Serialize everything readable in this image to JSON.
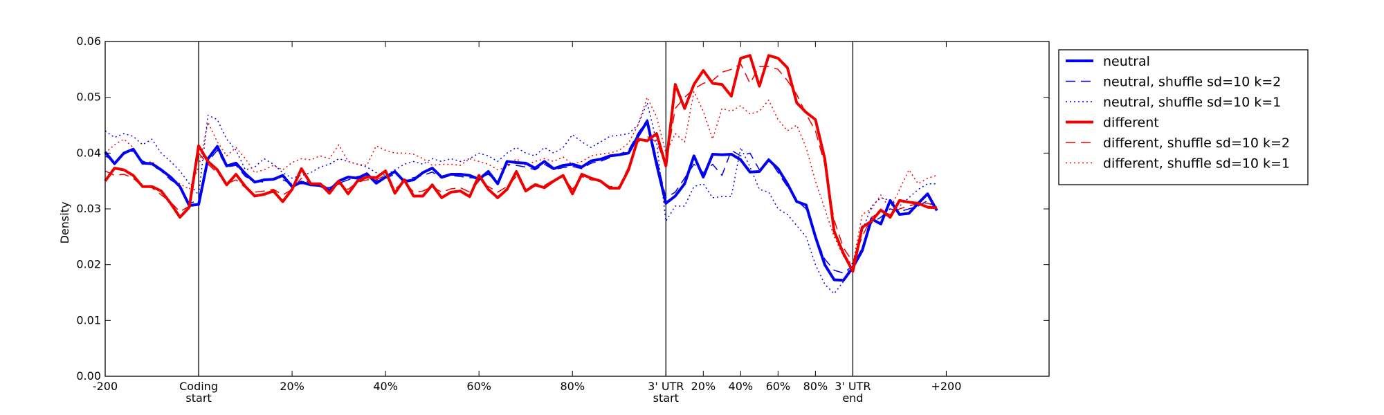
{
  "chart_data": {
    "type": "line",
    "title": "",
    "xlabel": "",
    "ylabel": "Density",
    "ylim": [
      0,
      0.06
    ],
    "yticks": [
      "0.00",
      "0.01",
      "0.02",
      "0.03",
      "0.04",
      "0.05",
      "0.06"
    ],
    "xlim": [
      0,
      101
    ],
    "x_tick_labels": [
      {
        "x": 0,
        "lines": [
          "-200"
        ]
      },
      {
        "x": 10,
        "lines": [
          "Coding",
          "start"
        ]
      },
      {
        "x": 20,
        "lines": [
          "20%"
        ]
      },
      {
        "x": 30,
        "lines": [
          "40%"
        ]
      },
      {
        "x": 40,
        "lines": [
          "60%"
        ]
      },
      {
        "x": 50,
        "lines": [
          "80%"
        ]
      },
      {
        "x": 60,
        "lines": [
          "3' UTR",
          "start"
        ]
      },
      {
        "x": 64,
        "lines": [
          "20%"
        ]
      },
      {
        "x": 68,
        "lines": [
          "40%"
        ]
      },
      {
        "x": 72,
        "lines": [
          "60%"
        ]
      },
      {
        "x": 76,
        "lines": [
          "80%"
        ]
      },
      {
        "x": 80,
        "lines": [
          "3' UTR",
          "end"
        ]
      },
      {
        "x": 90,
        "lines": [
          "+200"
        ]
      }
    ],
    "region_boundaries": [
      10,
      60,
      80
    ],
    "grid": false,
    "legend_position": "outside-right-top",
    "series": [
      {
        "name": "neutral",
        "color": "#0000ee",
        "style": "solid",
        "width": 4,
        "values": [
          0.0402,
          0.0381,
          0.04,
          0.0407,
          0.0382,
          0.0381,
          0.037,
          0.0357,
          0.034,
          0.0306,
          0.0308,
          0.039,
          0.0412,
          0.0377,
          0.0382,
          0.0363,
          0.0348,
          0.0352,
          0.0353,
          0.036,
          0.034,
          0.0348,
          0.0343,
          0.0342,
          0.0333,
          0.035,
          0.0357,
          0.0355,
          0.0363,
          0.0346,
          0.0357,
          0.0367,
          0.0349,
          0.0352,
          0.0365,
          0.0373,
          0.0357,
          0.0362,
          0.0362,
          0.036,
          0.0353,
          0.0367,
          0.0345,
          0.0385,
          0.0383,
          0.0382,
          0.0373,
          0.0385,
          0.0372,
          0.0378,
          0.038,
          0.0375,
          0.0386,
          0.0389,
          0.0395,
          0.0397,
          0.04,
          0.043,
          0.0457,
          0.038,
          0.031,
          0.0323,
          0.0345,
          0.0395,
          0.0357,
          0.0398,
          0.0397,
          0.0398,
          0.0388,
          0.0366,
          0.0367,
          0.0388,
          0.0372,
          0.0345,
          0.0313,
          0.0307,
          0.025,
          0.02,
          0.0173,
          0.0172,
          0.0195,
          0.0225,
          0.0282,
          0.0273,
          0.0315,
          0.029,
          0.0292,
          0.031,
          0.0327,
          0.0297
        ]
      },
      {
        "name": "neutral, shuffle sd=10 k=2",
        "color": "#0000ee",
        "style": "dashed",
        "width": 1.5,
        "values": [
          0.0395,
          0.0385,
          0.0398,
          0.0404,
          0.0386,
          0.0378,
          0.0368,
          0.0352,
          0.0342,
          0.031,
          0.0315,
          0.0385,
          0.0405,
          0.0375,
          0.0378,
          0.0358,
          0.035,
          0.0348,
          0.0355,
          0.0352,
          0.0345,
          0.0345,
          0.0346,
          0.034,
          0.0338,
          0.0346,
          0.0352,
          0.0358,
          0.036,
          0.035,
          0.0355,
          0.0362,
          0.0352,
          0.0356,
          0.036,
          0.0366,
          0.0355,
          0.036,
          0.0358,
          0.0356,
          0.0355,
          0.0362,
          0.0348,
          0.038,
          0.0378,
          0.0375,
          0.037,
          0.038,
          0.037,
          0.0374,
          0.0376,
          0.0372,
          0.0382,
          0.0385,
          0.0392,
          0.0398,
          0.0405,
          0.0435,
          0.046,
          0.039,
          0.032,
          0.033,
          0.0355,
          0.038,
          0.0365,
          0.038,
          0.036,
          0.0405,
          0.0395,
          0.04,
          0.037,
          0.039,
          0.0365,
          0.034,
          0.0315,
          0.03,
          0.025,
          0.021,
          0.019,
          0.0185,
          0.0198,
          0.023,
          0.0275,
          0.0285,
          0.03,
          0.0295,
          0.03,
          0.0305,
          0.0315,
          0.03
        ]
      },
      {
        "name": "neutral, shuffle sd=10 k=1",
        "color": "#0000ee",
        "style": "dotted",
        "width": 1.5,
        "values": [
          0.044,
          0.0428,
          0.0435,
          0.043,
          0.0415,
          0.0425,
          0.04,
          0.0385,
          0.0368,
          0.0345,
          0.0325,
          0.0468,
          0.046,
          0.0425,
          0.0405,
          0.037,
          0.0375,
          0.039,
          0.038,
          0.0365,
          0.0355,
          0.036,
          0.0365,
          0.0375,
          0.038,
          0.039,
          0.0385,
          0.038,
          0.0375,
          0.0365,
          0.036,
          0.037,
          0.038,
          0.0385,
          0.038,
          0.039,
          0.0385,
          0.039,
          0.0385,
          0.039,
          0.04,
          0.0395,
          0.0385,
          0.04,
          0.041,
          0.04,
          0.0395,
          0.041,
          0.04,
          0.041,
          0.0433,
          0.042,
          0.041,
          0.042,
          0.043,
          0.0432,
          0.0435,
          0.045,
          0.049,
          0.042,
          0.0278,
          0.0305,
          0.0305,
          0.034,
          0.0345,
          0.032,
          0.0322,
          0.0322,
          0.041,
          0.0375,
          0.0335,
          0.033,
          0.03,
          0.029,
          0.027,
          0.025,
          0.02,
          0.0165,
          0.0148,
          0.017,
          0.0205,
          0.026,
          0.0305,
          0.032,
          0.0315,
          0.0305,
          0.032,
          0.0335,
          0.0345,
          0.0345
        ]
      },
      {
        "name": "different",
        "color": "#ee0000",
        "style": "solid",
        "width": 4,
        "values": [
          0.035,
          0.0373,
          0.037,
          0.036,
          0.034,
          0.034,
          0.0332,
          0.031,
          0.0285,
          0.0303,
          0.0413,
          0.0385,
          0.037,
          0.0343,
          0.0362,
          0.034,
          0.0323,
          0.0326,
          0.0332,
          0.0313,
          0.0335,
          0.0372,
          0.0345,
          0.0345,
          0.0328,
          0.035,
          0.0327,
          0.035,
          0.0357,
          0.0356,
          0.0368,
          0.0328,
          0.0352,
          0.0323,
          0.0323,
          0.0343,
          0.032,
          0.033,
          0.0332,
          0.0322,
          0.036,
          0.0335,
          0.032,
          0.0335,
          0.0367,
          0.0332,
          0.0343,
          0.0338,
          0.035,
          0.036,
          0.0327,
          0.0362,
          0.0355,
          0.035,
          0.0337,
          0.0337,
          0.037,
          0.0425,
          0.0422,
          0.0435,
          0.0377,
          0.0523,
          0.048,
          0.0523,
          0.0548,
          0.0525,
          0.0523,
          0.0502,
          0.057,
          0.0575,
          0.052,
          0.0575,
          0.057,
          0.0553,
          0.049,
          0.0473,
          0.046,
          0.039,
          0.026,
          0.022,
          0.0188,
          0.0267,
          0.0278,
          0.0298,
          0.0285,
          0.0315,
          0.0312,
          0.031,
          0.0303,
          0.0302
        ]
      },
      {
        "name": "different, shuffle sd=10 k=2",
        "color": "#ee0000",
        "style": "dashed",
        "width": 1.5,
        "values": [
          0.0368,
          0.036,
          0.0362,
          0.0355,
          0.034,
          0.0338,
          0.0325,
          0.0312,
          0.0295,
          0.0305,
          0.04,
          0.038,
          0.0365,
          0.0345,
          0.0352,
          0.0338,
          0.033,
          0.0332,
          0.0335,
          0.0325,
          0.0335,
          0.0355,
          0.0345,
          0.0346,
          0.0335,
          0.0345,
          0.0335,
          0.0348,
          0.0352,
          0.0352,
          0.036,
          0.0335,
          0.035,
          0.033,
          0.0332,
          0.034,
          0.033,
          0.0336,
          0.0338,
          0.033,
          0.035,
          0.034,
          0.033,
          0.034,
          0.0358,
          0.0335,
          0.0345,
          0.0342,
          0.0352,
          0.0358,
          0.0335,
          0.0358,
          0.0352,
          0.035,
          0.034,
          0.034,
          0.0375,
          0.042,
          0.043,
          0.042,
          0.038,
          0.048,
          0.05,
          0.0515,
          0.0525,
          0.053,
          0.0545,
          0.055,
          0.056,
          0.0525,
          0.0555,
          0.0555,
          0.055,
          0.053,
          0.0505,
          0.047,
          0.044,
          0.038,
          0.028,
          0.023,
          0.0205,
          0.025,
          0.0285,
          0.0295,
          0.029,
          0.03,
          0.0305,
          0.031,
          0.031,
          0.0305
        ]
      },
      {
        "name": "different, shuffle sd=10 k=1",
        "color": "#ee0000",
        "style": "dotted",
        "width": 1.5,
        "values": [
          0.04,
          0.0415,
          0.0425,
          0.041,
          0.038,
          0.0385,
          0.037,
          0.0355,
          0.0345,
          0.0335,
          0.0375,
          0.0455,
          0.042,
          0.0395,
          0.041,
          0.039,
          0.0365,
          0.037,
          0.0378,
          0.037,
          0.0383,
          0.039,
          0.0388,
          0.0395,
          0.039,
          0.0415,
          0.0385,
          0.038,
          0.0378,
          0.0413,
          0.0405,
          0.04,
          0.04,
          0.0398,
          0.039,
          0.0378,
          0.038,
          0.038,
          0.0378,
          0.039,
          0.0385,
          0.038,
          0.037,
          0.0375,
          0.039,
          0.0378,
          0.0385,
          0.039,
          0.0385,
          0.0393,
          0.038,
          0.0385,
          0.0395,
          0.0398,
          0.04,
          0.0405,
          0.0418,
          0.045,
          0.05,
          0.0465,
          0.04,
          0.0435,
          0.042,
          0.051,
          0.0475,
          0.0425,
          0.048,
          0.0475,
          0.0485,
          0.047,
          0.0475,
          0.0495,
          0.046,
          0.044,
          0.045,
          0.041,
          0.035,
          0.03,
          0.025,
          0.0215,
          0.02,
          0.029,
          0.03,
          0.0325,
          0.03,
          0.0335,
          0.037,
          0.0345,
          0.0355,
          0.036
        ]
      }
    ]
  }
}
